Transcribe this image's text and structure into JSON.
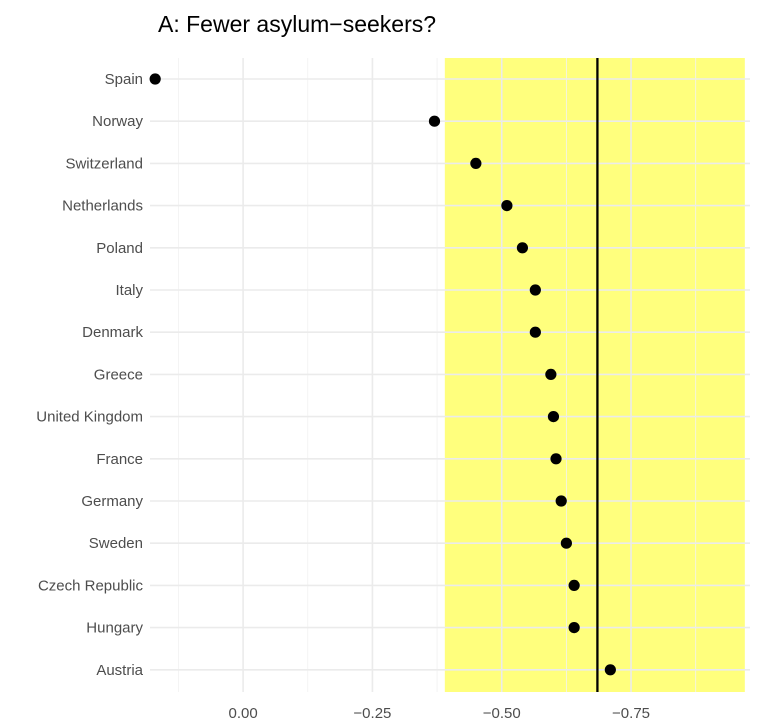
{
  "chart_data": {
    "type": "scatter",
    "title": "A: Fewer asylum−seekers?",
    "xlabel": "",
    "ylabel": "",
    "x_reversed": true,
    "xlim": [
      0.18,
      -0.98
    ],
    "x_ticks": [
      {
        "value": 0.0,
        "label": "0.00"
      },
      {
        "value": -0.25,
        "label": "−0.25"
      },
      {
        "value": -0.5,
        "label": "−0.50"
      },
      {
        "value": -0.75,
        "label": "−0.75"
      }
    ],
    "categories": [
      "Spain",
      "Norway",
      "Switzerland",
      "Netherlands",
      "Poland",
      "Italy",
      "Denmark",
      "Greece",
      "United Kingdom",
      "France",
      "Germany",
      "Sweden",
      "Czech Republic",
      "Hungary",
      "Austria"
    ],
    "values": [
      0.17,
      -0.37,
      -0.45,
      -0.51,
      -0.54,
      -0.565,
      -0.565,
      -0.595,
      -0.6,
      -0.605,
      -0.615,
      -0.625,
      -0.64,
      -0.64,
      -0.71
    ],
    "reference_line": -0.685,
    "shaded_band": {
      "from": -0.39,
      "to": -0.97,
      "color": "#ffff66"
    },
    "point_color": "#000000",
    "grid": true,
    "legend": "none"
  }
}
